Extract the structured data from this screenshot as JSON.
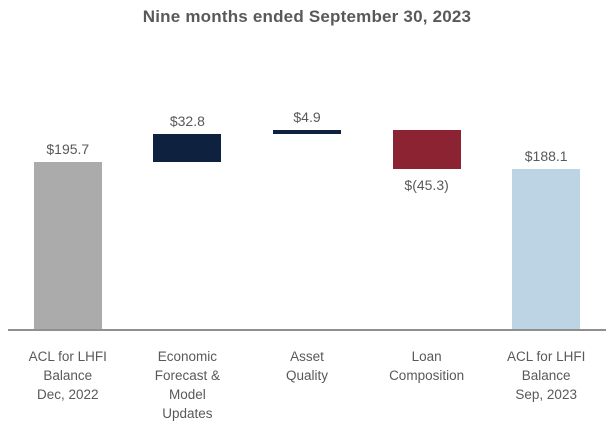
{
  "chart_data": {
    "type": "bar",
    "variant": "waterfall",
    "title": "Nine months ended September 30, 2023",
    "xlabel": "",
    "ylabel": "",
    "ylim": [
      0,
      240
    ],
    "grid": false,
    "legend": false,
    "categories": [
      "ACL for LHFI\nBalance\nDec, 2022",
      "Economic\nForecast &\nModel\nUpdates",
      "Asset\nQuality",
      "Loan\nComposition",
      "ACL for LHFI\nBalance\nSep, 2023"
    ],
    "values": [
      195.7,
      32.8,
      4.9,
      -45.3,
      188.1
    ],
    "bars": [
      {
        "id": "acl-lhfi-balance-dec-2022",
        "category": "ACL for LHFI\nBalance\nDec, 2022",
        "value": 195.7,
        "label": "$195.7",
        "role": "total",
        "color": "#ABABAB",
        "label_position": "above"
      },
      {
        "id": "economic-forecast-model-updates",
        "category": "Economic\nForecast &\nModel\nUpdates",
        "value": 32.8,
        "label": "$32.8",
        "role": "increase",
        "color": "#0E2240",
        "label_position": "above"
      },
      {
        "id": "asset-quality",
        "category": "Asset\nQuality",
        "value": 4.9,
        "label": "$4.9",
        "role": "increase",
        "color": "#0E2240",
        "label_position": "above"
      },
      {
        "id": "loan-composition",
        "category": "Loan\nComposition",
        "value": -45.3,
        "label": "$(45.3)",
        "role": "decrease",
        "color": "#8C2332",
        "label_position": "below"
      },
      {
        "id": "acl-lhfi-balance-sep-2023",
        "category": "ACL for LHFI\nBalance\nSep, 2023",
        "value": 188.1,
        "label": "$188.1",
        "role": "total",
        "color": "#BDD4E4",
        "label_position": "above"
      }
    ],
    "colors": {
      "axis_line": "#8F8F8F",
      "title_text": "#595959",
      "value_label_text": "#595959",
      "category_label_text": "#595959"
    }
  }
}
